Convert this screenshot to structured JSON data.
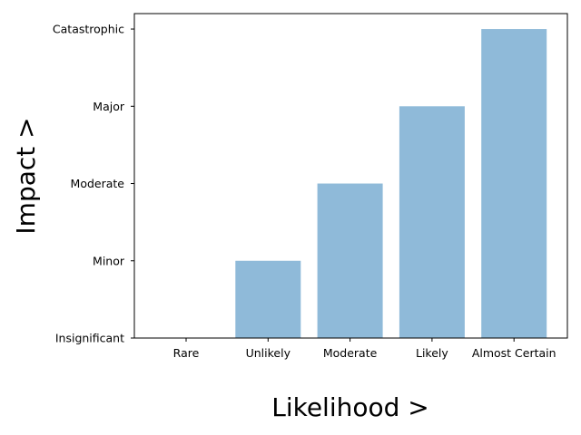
{
  "chart_data": {
    "type": "bar",
    "title": "",
    "xlabel": "Likelihood >",
    "ylabel": "Impact >",
    "categories": [
      "Rare",
      "Unlikely",
      "Moderate",
      "Likely",
      "Almost Certain"
    ],
    "values": [
      0,
      1,
      2,
      3,
      4
    ],
    "y_tick_values": [
      0,
      1,
      2,
      3,
      4
    ],
    "y_tick_labels": [
      "Insignificant",
      "Minor",
      "Moderate",
      "Major",
      "Catastrophic"
    ],
    "ylim": [
      0,
      4.2
    ],
    "grid": false,
    "legend": "none",
    "bar_color": "#8fbad9"
  }
}
